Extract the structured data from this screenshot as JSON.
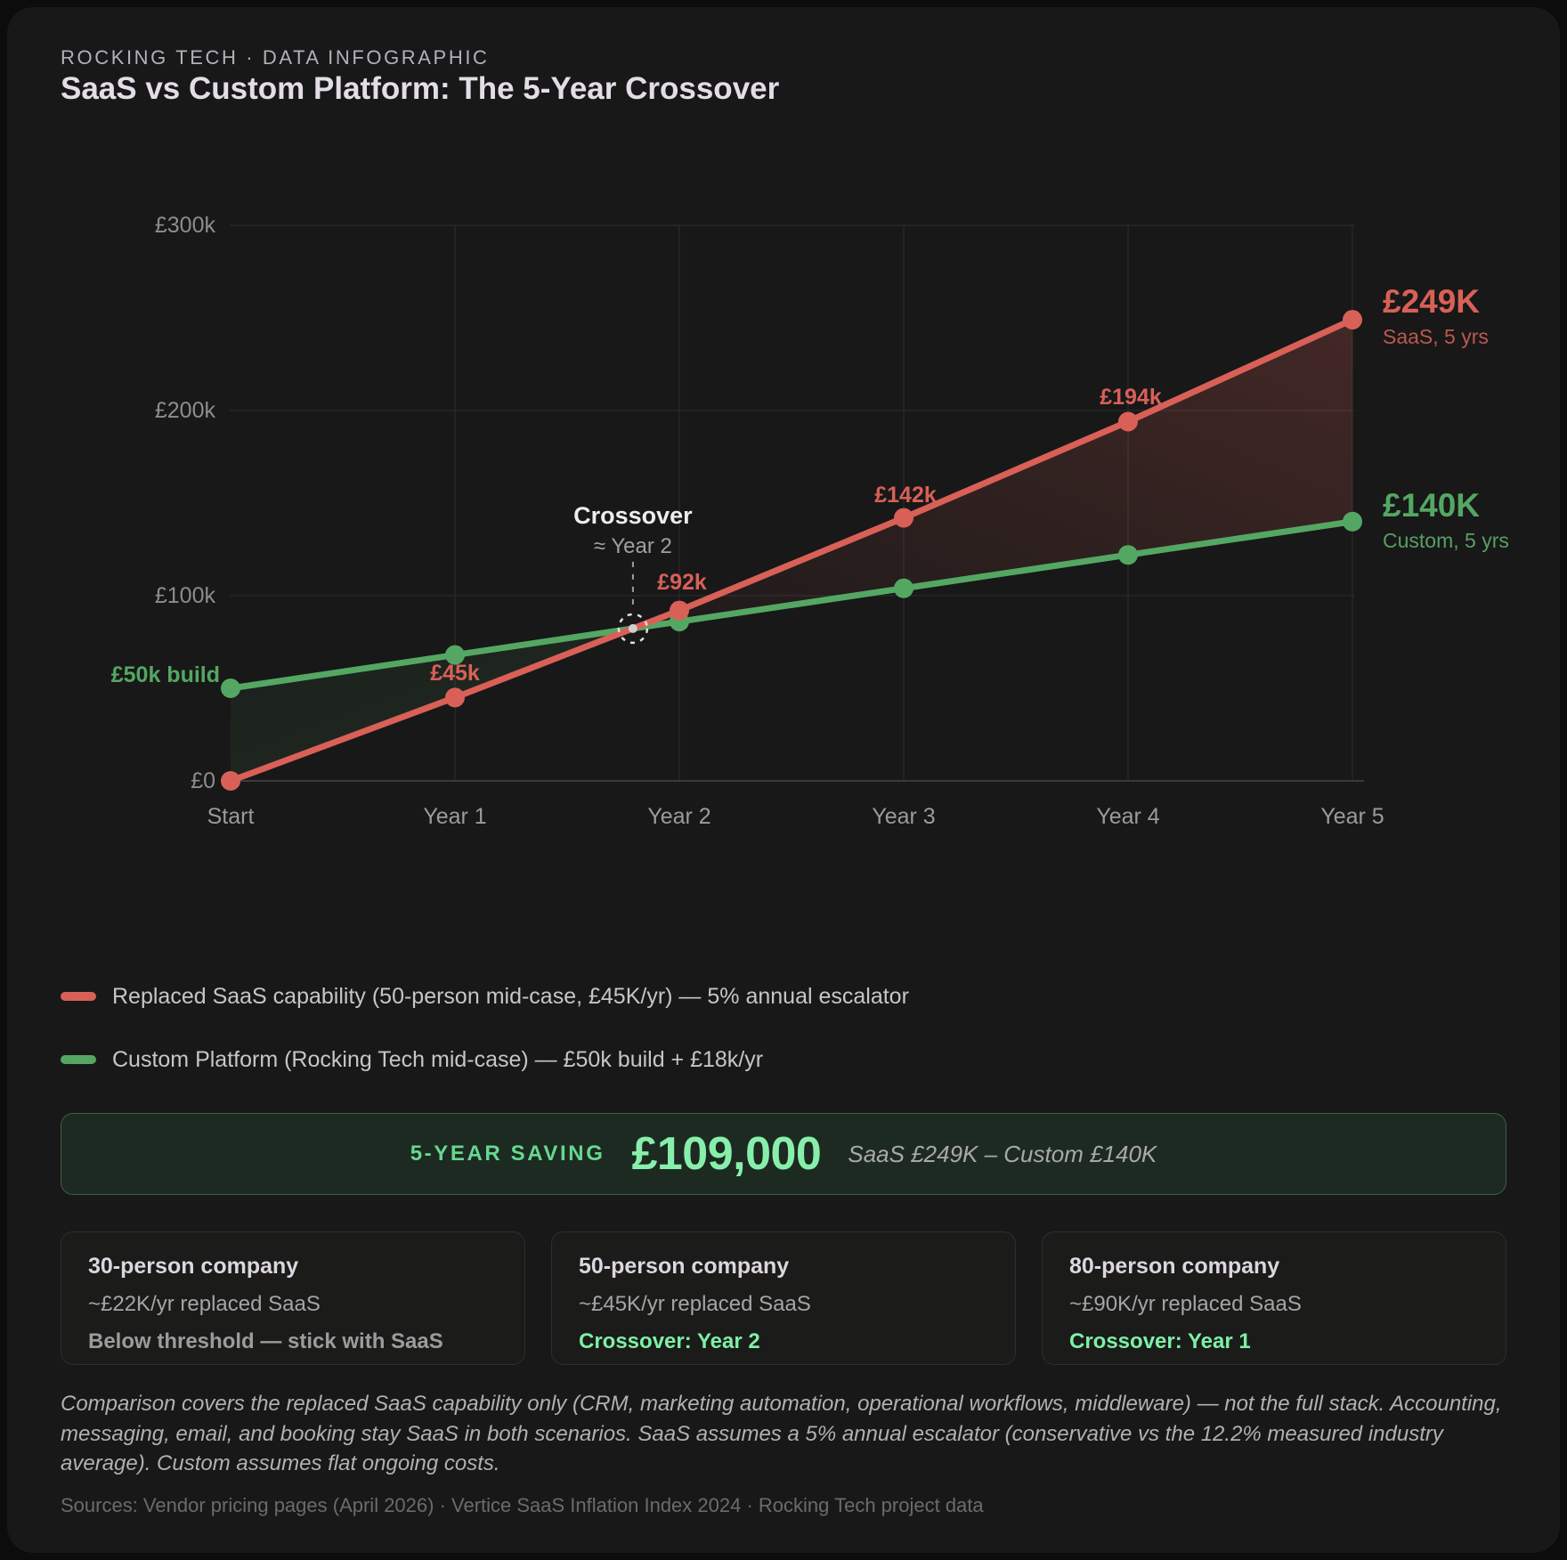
{
  "header": {
    "kicker": "ROCKING TECH · DATA INFOGRAPHIC",
    "title": "SaaS vs Custom Platform: The 5-Year Crossover"
  },
  "chart_data": {
    "type": "line",
    "title": "SaaS vs Custom Platform: The 5-Year Crossover",
    "x_categories": [
      "Start",
      "Year 1",
      "Year 2",
      "Year 3",
      "Year 4",
      "Year 5"
    ],
    "y_ticks": [
      "£300k",
      "£200k",
      "£100k",
      "£0"
    ],
    "ylim": [
      0,
      300000
    ],
    "grid": true,
    "legend_position": "bottom",
    "series": [
      {
        "name": "Replaced SaaS capability (50-person mid-case, £45K/yr) — 5% annual escalator",
        "color": "#d96057",
        "values": [
          0,
          45000,
          92000,
          142000,
          194000,
          249000
        ],
        "point_labels": [
          "",
          "£45k",
          "£92k",
          "£142k",
          "£194k",
          ""
        ],
        "end_value": "£249K",
        "end_caption": "SaaS, 5 yrs"
      },
      {
        "name": "Custom Platform (Rocking Tech mid-case) — £50k build + £18k/yr",
        "color": "#54a763",
        "values": [
          50000,
          68000,
          86000,
          104000,
          122000,
          140000
        ],
        "start_label": "£50k build",
        "end_value": "£140K",
        "end_caption": "Custom, 5 yrs"
      }
    ],
    "annotation": {
      "title": "Crossover",
      "subtitle": "≈ Year 2",
      "crossover_value": 82000
    }
  },
  "legend": {
    "items": [
      {
        "label": "Replaced SaaS capability (50-person mid-case, £45K/yr) — 5% annual escalator",
        "color": "#d96057"
      },
      {
        "label": "Custom Platform (Rocking Tech mid-case) — £50k build + £18k/yr",
        "color": "#54a763"
      }
    ]
  },
  "banner": {
    "label": "5-YEAR SAVING",
    "amount": "£109,000",
    "note": "SaaS £249K – Custom £140K",
    "accent_color": "#87efab"
  },
  "cards": [
    {
      "title": "30-person company",
      "subtitle": "~£22K/yr replaced SaaS",
      "verdict": "Below threshold — stick with SaaS"
    },
    {
      "title": "50-person company",
      "subtitle": "~£45K/yr replaced SaaS",
      "verdict": "Crossover: Year 2"
    },
    {
      "title": "80-person company",
      "subtitle": "~£90K/yr replaced SaaS",
      "verdict": "Crossover: Year 1"
    }
  ],
  "footnote": "Comparison covers the replaced SaaS capability only (CRM, marketing automation, operational workflows, middleware) — not the full stack. Accounting, messaging, email, and booking stay SaaS in both scenarios. SaaS assumes a 5% annual escalator (conservative vs the 12.2% measured industry average). Custom assumes flat ongoing costs.",
  "sources": "Sources: Vendor pricing pages (April 2026) · Vertice SaaS Inflation Index 2024 · Rocking Tech project data"
}
